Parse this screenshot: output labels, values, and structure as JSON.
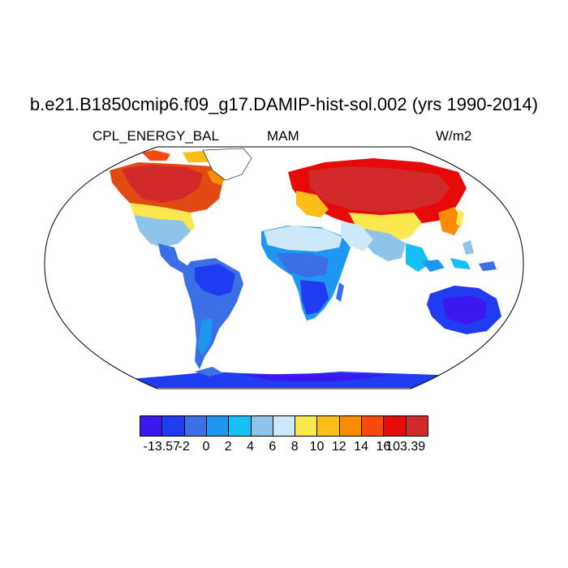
{
  "title": "b.e21.B1850cmip6.f09_g17.DAMIP-hist-sol.002 (yrs 1990-2014)",
  "left_subtitle": "CPL_ENERGY_BAL",
  "center_subtitle": "MAM",
  "right_subtitle": "W/m2",
  "map": {
    "projection": "Robinson",
    "ocean_color": "#ffffff",
    "coastline_color": "#000000"
  },
  "colorbar": {
    "colors": [
      "#3b18ef",
      "#1f3cf0",
      "#3a6fe6",
      "#1d97f2",
      "#16c0f5",
      "#8ec3ea",
      "#cde8f9",
      "#fbe84f",
      "#fdbd17",
      "#fb8a05",
      "#f64a0e",
      "#e60b0a",
      "#d22a2a"
    ],
    "labels": [
      "-13.57",
      "-2",
      "0",
      "2",
      "4",
      "6",
      "8",
      "10",
      "12",
      "14",
      "16",
      "103.39"
    ]
  }
}
